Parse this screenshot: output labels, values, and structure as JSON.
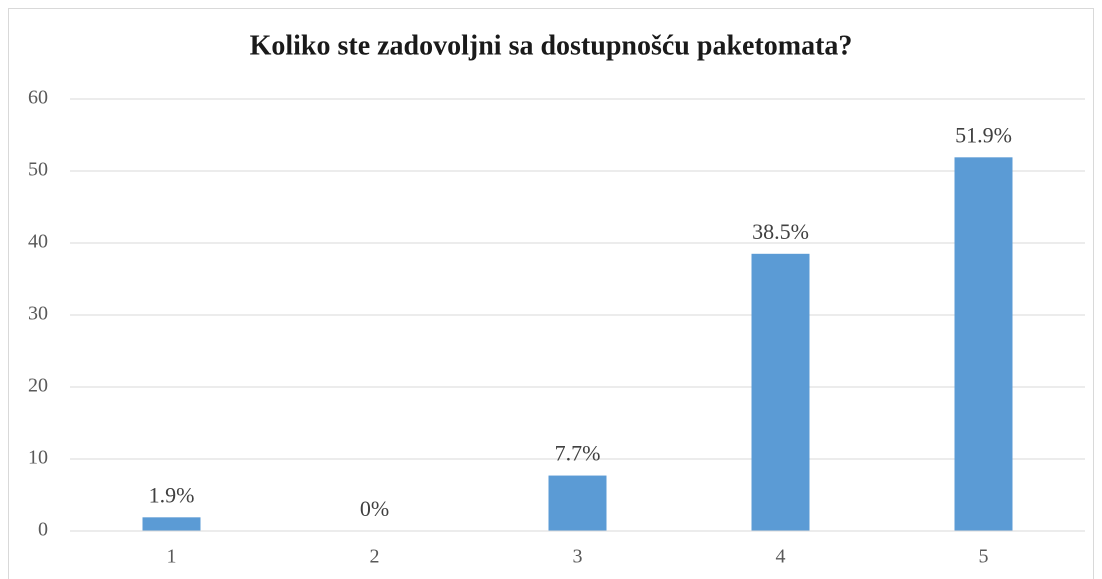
{
  "chart_data": {
    "type": "bar",
    "title": "Koliko ste zadovoljni sa dostupnošću paketomata?",
    "categories": [
      "1",
      "2",
      "3",
      "4",
      "5"
    ],
    "values": [
      1.9,
      0,
      7.7,
      38.5,
      51.9
    ],
    "value_labels": [
      "1.9%",
      "0%",
      "7.7%",
      "38.5%",
      "51.9%"
    ],
    "color": "#5b9bd5",
    "ylim": [
      0,
      60
    ],
    "yticks": [
      0,
      10,
      20,
      30,
      40,
      50,
      60
    ],
    "grid": true
  }
}
